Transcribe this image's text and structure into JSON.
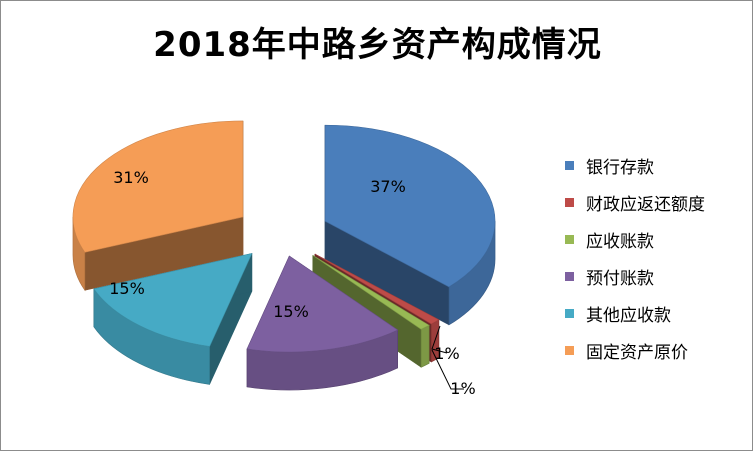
{
  "chart_data": {
    "type": "pie",
    "title": "2018年中路乡资产构成情况",
    "series": [
      {
        "name": "银行存款",
        "value": 37,
        "label": "37%",
        "color": "#4a7ebb"
      },
      {
        "name": "财政应返还额度",
        "value": 1,
        "label": "1%",
        "color": "#be4b48"
      },
      {
        "name": "应收账款",
        "value": 1,
        "label": "1%",
        "color": "#98b954"
      },
      {
        "name": "预付账款",
        "value": 15,
        "label": "15%",
        "color": "#7d60a0"
      },
      {
        "name": "其他应收款",
        "value": 15,
        "label": "15%",
        "color": "#46aac5"
      },
      {
        "name": "固定资产原价",
        "value": 31,
        "label": "31%",
        "color": "#f59d56"
      }
    ],
    "legend_position": "right",
    "style": "3d-exploded-pie"
  }
}
